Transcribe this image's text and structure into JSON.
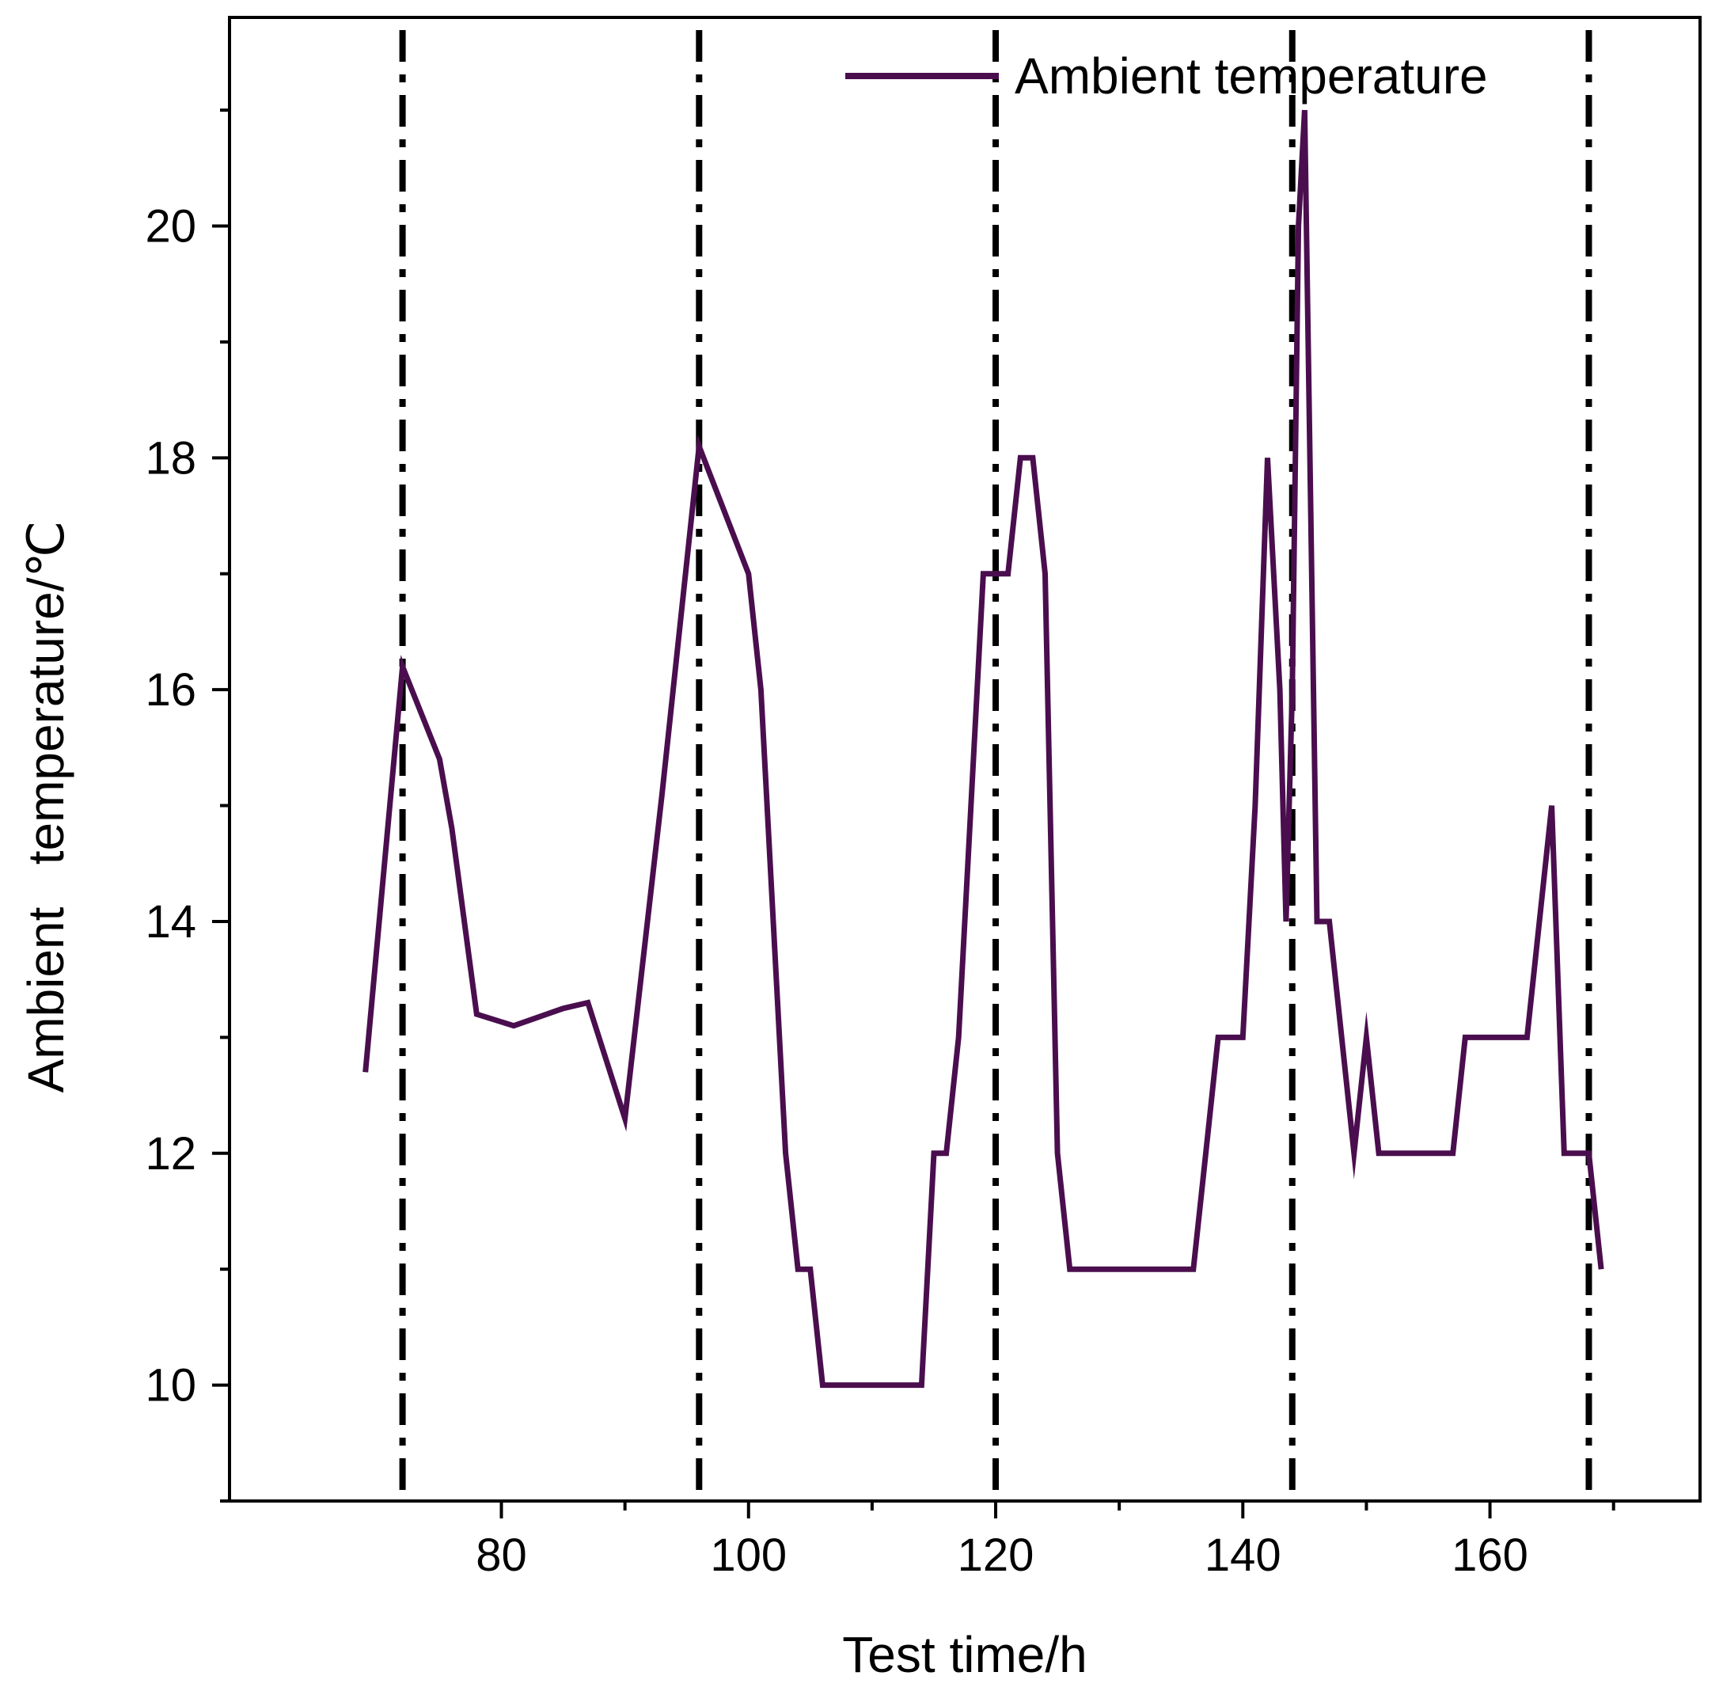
{
  "chart_data": {
    "type": "line",
    "title": "",
    "xlabel": "Test time/h",
    "ylabel": "Ambient   temperature/℃",
    "xlim": [
      58,
      177
    ],
    "ylim": [
      9,
      21.8
    ],
    "xticks": [
      80,
      100,
      120,
      140,
      160
    ],
    "xtick_labels": [
      "80",
      "100",
      "120",
      "140",
      "160"
    ],
    "xminor_ticks": [
      90,
      110,
      130,
      150,
      170
    ],
    "yticks": [
      10,
      12,
      14,
      16,
      18,
      20
    ],
    "ytick_labels": [
      "10",
      "12",
      "14",
      "16",
      "18",
      "20"
    ],
    "grid": false,
    "legend_position": "top-right",
    "colors": {
      "series": "#4a0e4e",
      "reference": "#000000",
      "axis": "#000000"
    },
    "reference_lines": {
      "style": "dash-dot",
      "x": [
        72,
        96,
        120,
        144,
        168
      ]
    },
    "series": [
      {
        "name": "Ambient temperature",
        "x": [
          69,
          72,
          75,
          76,
          78,
          81,
          85,
          87,
          90,
          93,
          96,
          100,
          101,
          103,
          104,
          105,
          106,
          108,
          114,
          115,
          116,
          117,
          118,
          119,
          120,
          121,
          122,
          123,
          124,
          125,
          126,
          130,
          136,
          137,
          138,
          140,
          141,
          142,
          143,
          143.5,
          144,
          144.5,
          145,
          146,
          147,
          148,
          149,
          150,
          151,
          155,
          157,
          158,
          160,
          163,
          164,
          165,
          166,
          167,
          168,
          169
        ],
        "y": [
          12.7,
          16.2,
          15.4,
          14.8,
          13.2,
          13.1,
          13.25,
          13.3,
          12.3,
          15.1,
          18.1,
          17.0,
          16.0,
          12.0,
          11.0,
          11.0,
          10.0,
          10.0,
          10.0,
          12.0,
          12.0,
          13.0,
          15.0,
          17.0,
          17.0,
          17.0,
          18.0,
          18.0,
          17.0,
          12.0,
          11.0,
          11.0,
          11.0,
          12.0,
          13.0,
          13.0,
          15.0,
          18.0,
          16.0,
          14.0,
          16.0,
          20.0,
          21.0,
          14.0,
          14.0,
          13.0,
          12.0,
          13.0,
          12.0,
          12.0,
          12.0,
          13.0,
          13.0,
          13.0,
          14.0,
          15.0,
          12.0,
          12.0,
          12.0,
          11.0
        ]
      }
    ]
  }
}
